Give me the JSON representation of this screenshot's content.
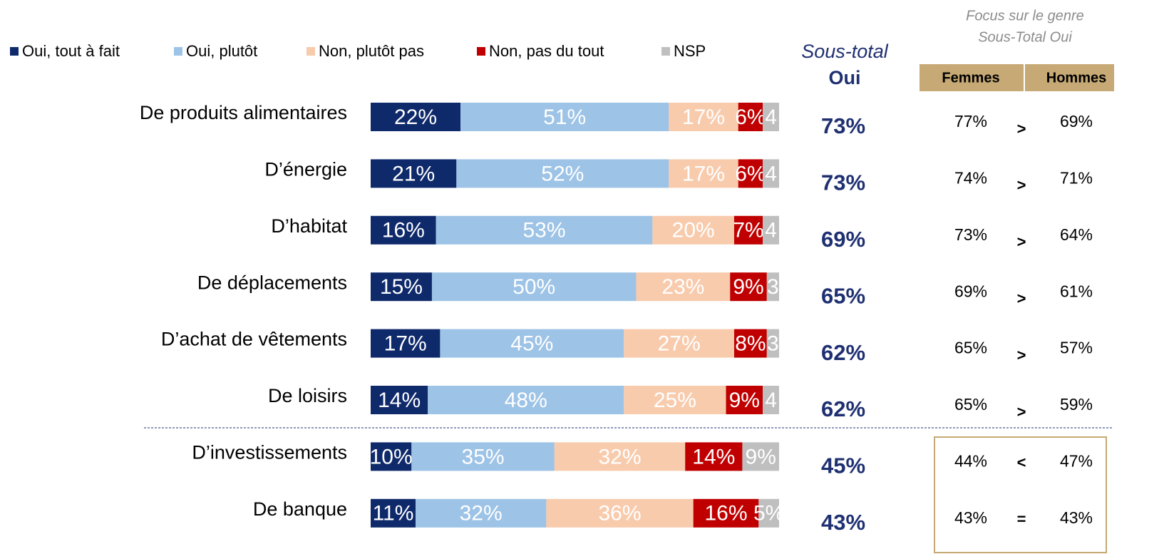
{
  "chart_data": {
    "type": "bar",
    "orientation": "horizontal",
    "stacked": true,
    "legend": "top",
    "xlim": [
      0,
      100
    ],
    "categories": [
      "De produits alimentaires",
      "D’énergie",
      "D’habitat",
      "De déplacements",
      "D’achat de vêtements",
      "De loisirs",
      "D’investissements",
      "De banque"
    ],
    "series": [
      {
        "name": "Oui, tout à fait",
        "color": "#0f2a6b",
        "values": [
          22,
          21,
          16,
          15,
          17,
          14,
          10,
          11
        ],
        "value_labels": [
          "22%",
          "21%",
          "16%",
          "15%",
          "17%",
          "14%",
          "10%",
          "11%"
        ]
      },
      {
        "name": "Oui, plutôt",
        "color": "#9dc3e6",
        "values": [
          51,
          52,
          53,
          50,
          45,
          48,
          35,
          32
        ],
        "value_labels": [
          "51%",
          "52%",
          "53%",
          "50%",
          "45%",
          "48%",
          "35%",
          "32%"
        ]
      },
      {
        "name": "Non, plutôt pas",
        "color": "#f8cbad",
        "values": [
          17,
          17,
          20,
          23,
          27,
          25,
          32,
          36
        ],
        "value_labels": [
          "17%",
          "17%",
          "20%",
          "23%",
          "27%",
          "25%",
          "32%",
          "36%"
        ]
      },
      {
        "name": "Non, pas du tout",
        "color": "#c00000",
        "values": [
          6,
          6,
          7,
          9,
          8,
          9,
          14,
          16
        ],
        "value_labels": [
          "6%",
          "6%",
          "7%",
          "9%",
          "8%",
          "9%",
          "14%",
          "16%"
        ]
      },
      {
        "name": "NSP",
        "color": "#bfbfbf",
        "values": [
          4,
          4,
          4,
          3,
          3,
          4,
          9,
          5
        ],
        "value_labels": [
          "4",
          "4",
          "4",
          "3",
          "3",
          "4",
          "9%",
          "5%"
        ]
      }
    ],
    "subtotal": {
      "title": "Sous-total",
      "subtitle": "Oui",
      "values": [
        73,
        73,
        69,
        65,
        62,
        62,
        45,
        43
      ],
      "value_labels": [
        "73%",
        "73%",
        "69%",
        "65%",
        "62%",
        "62%",
        "45%",
        "43%"
      ]
    },
    "focus": {
      "title": "Focus sur le genre",
      "subtitle": "Sous-Total Oui",
      "columns": [
        "Femmes",
        "Hommes"
      ],
      "femmes": [
        77,
        74,
        73,
        69,
        65,
        65,
        44,
        43
      ],
      "femmes_labels": [
        "77%",
        "74%",
        "73%",
        "69%",
        "65%",
        "65%",
        "44%",
        "43%"
      ],
      "hommes": [
        69,
        71,
        64,
        61,
        57,
        59,
        47,
        43
      ],
      "hommes_labels": [
        "69%",
        "71%",
        "64%",
        "61%",
        "57%",
        "59%",
        "47%",
        "43%"
      ],
      "signs": [
        ">",
        ">",
        ">",
        ">",
        ">",
        ">",
        "<",
        "="
      ]
    }
  }
}
